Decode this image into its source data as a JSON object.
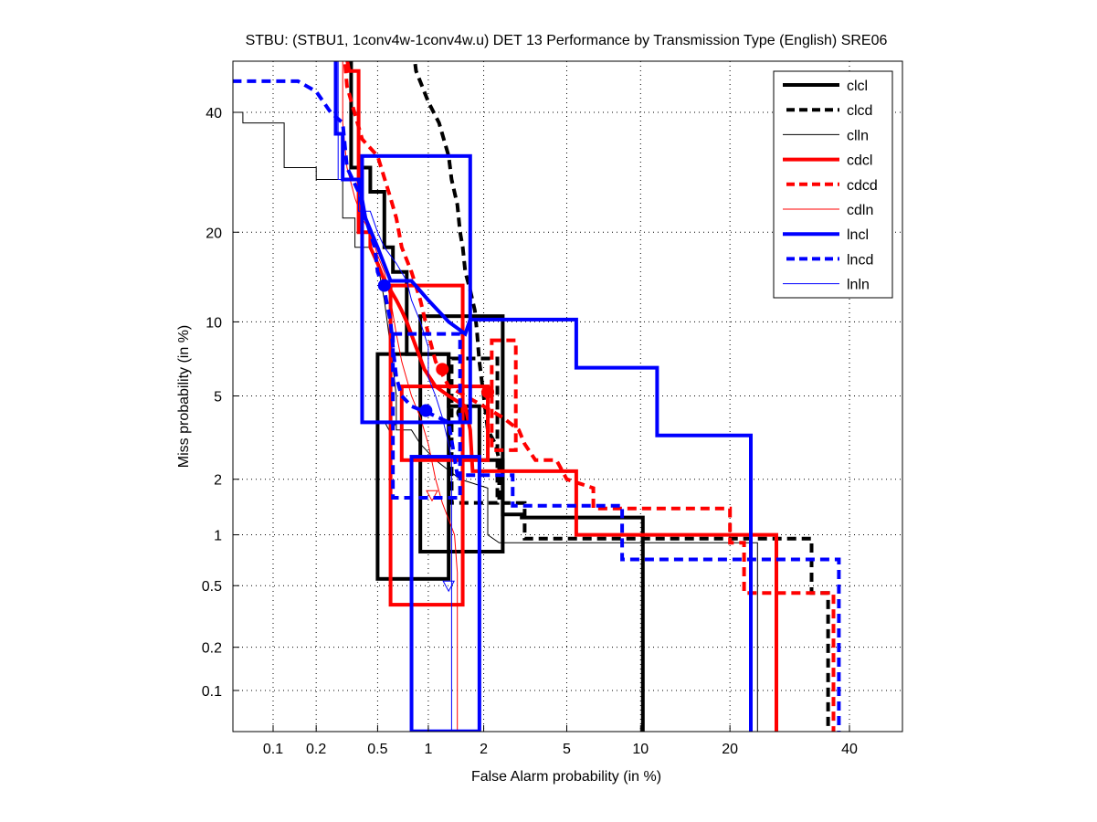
{
  "chart_data": {
    "type": "line",
    "title": "STBU: (STBU1, 1conv4w-1conv4w.u) DET 13 Performance by Transmission Type (English) SRE06",
    "xlabel": "False Alarm probability (in %)",
    "ylabel": "Miss probability (in %)",
    "xscale": "normal-deviate",
    "yscale": "normal-deviate",
    "xlim": [
      0.05,
      50
    ],
    "ylim": [
      0.05,
      50
    ],
    "xticks": [
      0.1,
      0.2,
      0.5,
      1,
      2,
      5,
      10,
      20,
      40
    ],
    "xtick_labels": [
      "0.1",
      "0.2",
      "0.5",
      "1",
      "2",
      "5",
      "10",
      "20",
      "40"
    ],
    "yticks": [
      0.1,
      0.2,
      0.5,
      1,
      2,
      5,
      10,
      20,
      40
    ],
    "ytick_labels": [
      "0.1",
      "0.2",
      "0.5",
      "1",
      "2",
      "5",
      "10",
      "20",
      "40"
    ],
    "grid": true,
    "legend_position": "top-right",
    "series": [
      {
        "name": "clcl",
        "color": "#000000",
        "style": "solid-thick",
        "points": [
          [
            0.34,
            55
          ],
          [
            0.34,
            30
          ],
          [
            0.45,
            30
          ],
          [
            0.45,
            26
          ],
          [
            0.55,
            26
          ],
          [
            0.55,
            18
          ],
          [
            0.62,
            18
          ],
          [
            0.62,
            15
          ],
          [
            0.75,
            15
          ],
          [
            0.75,
            7.5
          ],
          [
            1.3,
            7.5
          ],
          [
            1.3,
            4.5
          ],
          [
            1.9,
            4.5
          ],
          [
            1.9,
            2.5
          ],
          [
            2.5,
            2.5
          ],
          [
            2.5,
            1.3
          ],
          [
            3.1,
            1.3
          ],
          [
            3.1,
            1.25
          ],
          [
            10.2,
            1.25
          ],
          [
            10.2,
            0.05
          ]
        ],
        "box": [
          [
            0.5,
            0.55
          ],
          [
            1.3,
            7.5
          ]
        ],
        "box2": [
          [
            0.9,
            0.8
          ],
          [
            2.5,
            10.5
          ]
        ],
        "marker": [
          1.55,
          4.2
        ]
      },
      {
        "name": "clcd",
        "color": "#000000",
        "style": "dashed-thick",
        "points": [
          [
            0.8,
            55
          ],
          [
            0.85,
            48
          ],
          [
            1.0,
            42
          ],
          [
            1.15,
            38
          ],
          [
            1.3,
            32
          ],
          [
            1.35,
            28
          ],
          [
            1.45,
            24
          ],
          [
            1.5,
            20
          ],
          [
            1.55,
            18
          ],
          [
            1.6,
            15
          ],
          [
            1.7,
            13
          ],
          [
            1.8,
            11
          ],
          [
            1.85,
            9
          ],
          [
            1.9,
            7
          ],
          [
            2.0,
            5
          ],
          [
            2.1,
            3.5
          ],
          [
            2.3,
            3
          ],
          [
            2.4,
            2.5
          ],
          [
            2.4,
            1.5
          ],
          [
            3.2,
            1.5
          ],
          [
            3.2,
            0.95
          ],
          [
            33,
            0.95
          ],
          [
            33,
            0.45
          ],
          [
            36,
            0.45
          ],
          [
            36,
            0.05
          ]
        ],
        "box": [
          [
            1.35,
            1.5
          ],
          [
            2.35,
            7.2
          ]
        ],
        "marker": [
          1.6,
          4.0
        ]
      },
      {
        "name": "clln",
        "color": "#000000",
        "style": "solid-thin",
        "points": [
          [
            0.05,
            40
          ],
          [
            0.06,
            40
          ],
          [
            0.06,
            38
          ],
          [
            0.12,
            38
          ],
          [
            0.12,
            30
          ],
          [
            0.2,
            30
          ],
          [
            0.2,
            28
          ],
          [
            0.3,
            28
          ],
          [
            0.3,
            22
          ],
          [
            0.36,
            22
          ],
          [
            0.36,
            18
          ],
          [
            0.45,
            18
          ],
          [
            0.5,
            16
          ],
          [
            0.55,
            12
          ],
          [
            0.6,
            8
          ],
          [
            0.65,
            5
          ],
          [
            0.65,
            3.5
          ],
          [
            0.8,
            3.5
          ],
          [
            0.9,
            3
          ],
          [
            1.1,
            2.5
          ],
          [
            1.5,
            2
          ],
          [
            2.1,
            1.8
          ],
          [
            2.1,
            1.0
          ],
          [
            2.4,
            0.9
          ],
          [
            24,
            0.9
          ],
          [
            24,
            0.05
          ]
        ],
        "marker": [
          0.6,
          3.6
        ]
      },
      {
        "name": "cdcl",
        "color": "#ff0000",
        "style": "solid-thick",
        "points": [
          [
            0.3,
            55
          ],
          [
            0.33,
            48
          ],
          [
            0.38,
            48
          ],
          [
            0.38,
            20
          ],
          [
            0.45,
            20
          ],
          [
            0.45,
            18
          ],
          [
            0.5,
            16
          ],
          [
            0.55,
            14
          ],
          [
            0.6,
            13
          ],
          [
            0.65,
            12
          ],
          [
            0.7,
            11
          ],
          [
            0.75,
            10
          ],
          [
            0.85,
            8
          ],
          [
            0.95,
            6.5
          ],
          [
            1.1,
            5.5
          ],
          [
            1.3,
            5
          ],
          [
            1.6,
            4.5
          ],
          [
            1.7,
            3.5
          ],
          [
            1.75,
            2.2
          ],
          [
            5.5,
            2.2
          ],
          [
            5.5,
            1.0
          ],
          [
            27,
            1.0
          ],
          [
            27,
            0.05
          ]
        ],
        "box": [
          [
            0.6,
            0.38
          ],
          [
            1.55,
            13.5
          ]
        ],
        "box2": [
          [
            0.7,
            2.5
          ],
          [
            2.1,
            5.5
          ]
        ],
        "marker": [
          1.2,
          6.5
        ]
      },
      {
        "name": "cdcd",
        "color": "#ff0000",
        "style": "dashed-thick",
        "points": [
          [
            0.3,
            55
          ],
          [
            0.32,
            45
          ],
          [
            0.4,
            35
          ],
          [
            0.5,
            32
          ],
          [
            0.6,
            25
          ],
          [
            0.65,
            22
          ],
          [
            0.7,
            18
          ],
          [
            0.8,
            15
          ],
          [
            0.9,
            12
          ],
          [
            1.0,
            9
          ],
          [
            1.1,
            7
          ],
          [
            1.3,
            5.5
          ],
          [
            1.6,
            5
          ],
          [
            2.0,
            4.5
          ],
          [
            2.5,
            4
          ],
          [
            3.0,
            3.5
          ],
          [
            3.2,
            3
          ],
          [
            3.6,
            2.5
          ],
          [
            4.5,
            2.5
          ],
          [
            5.0,
            2
          ],
          [
            6.5,
            1.8
          ],
          [
            6.5,
            1.4
          ],
          [
            20,
            1.4
          ],
          [
            20,
            0.9
          ],
          [
            22,
            0.9
          ],
          [
            22,
            0.45
          ],
          [
            37,
            0.45
          ],
          [
            37,
            0.05
          ]
        ],
        "box": [
          [
            2.2,
            2.8
          ],
          [
            2.9,
            8.5
          ]
        ],
        "marker": [
          2.1,
          5.2
        ]
      },
      {
        "name": "cdln",
        "color": "#ff0000",
        "style": "solid-thin",
        "points": [
          [
            0.3,
            55
          ],
          [
            0.3,
            38
          ],
          [
            0.32,
            30
          ],
          [
            0.36,
            25
          ],
          [
            0.4,
            22
          ],
          [
            0.45,
            20
          ],
          [
            0.5,
            17
          ],
          [
            0.55,
            15
          ],
          [
            0.6,
            12
          ],
          [
            0.65,
            9
          ],
          [
            0.7,
            7
          ],
          [
            0.8,
            5
          ],
          [
            0.9,
            4
          ],
          [
            1.0,
            3
          ],
          [
            1.1,
            2.0
          ],
          [
            1.2,
            1.5
          ],
          [
            1.4,
            1.0
          ],
          [
            1.45,
            0.6
          ],
          [
            1.45,
            0.05
          ]
        ],
        "marker": [
          1.05,
          1.65
        ]
      },
      {
        "name": "lncl",
        "color": "#0000ff",
        "style": "solid-thick",
        "points": [
          [
            0.27,
            55
          ],
          [
            0.27,
            36
          ],
          [
            0.3,
            36
          ],
          [
            0.3,
            28
          ],
          [
            0.38,
            28
          ],
          [
            0.42,
            22
          ],
          [
            0.5,
            18
          ],
          [
            0.6,
            14
          ],
          [
            0.8,
            14
          ],
          [
            1.0,
            12
          ],
          [
            1.3,
            10
          ],
          [
            1.6,
            9
          ],
          [
            1.7,
            10.2
          ],
          [
            5.5,
            10.2
          ],
          [
            5.5,
            6.6
          ],
          [
            11.5,
            6.6
          ],
          [
            11.5,
            3.3
          ],
          [
            23,
            3.3
          ],
          [
            23,
            0.05
          ]
        ],
        "box": [
          [
            0.4,
            3.8
          ],
          [
            1.7,
            32
          ]
        ],
        "box2": [
          [
            0.8,
            0.05
          ],
          [
            1.9,
            2.6
          ]
        ],
        "marker": [
          0.55,
          13.5
        ]
      },
      {
        "name": "lncd",
        "color": "#0000ff",
        "style": "dashed-thick",
        "points": [
          [
            0.05,
            46
          ],
          [
            0.15,
            46
          ],
          [
            0.2,
            44
          ],
          [
            0.25,
            40
          ],
          [
            0.3,
            38
          ],
          [
            0.32,
            30
          ],
          [
            0.38,
            26
          ],
          [
            0.42,
            22
          ],
          [
            0.48,
            18
          ],
          [
            0.5,
            15
          ],
          [
            0.55,
            13
          ],
          [
            0.6,
            10
          ],
          [
            0.62,
            8
          ],
          [
            0.65,
            6
          ],
          [
            0.7,
            5
          ],
          [
            0.8,
            4.5
          ],
          [
            1.0,
            4.2
          ],
          [
            1.3,
            3.8
          ],
          [
            1.45,
            2.1
          ],
          [
            2.8,
            2.1
          ],
          [
            2.8,
            1.45
          ],
          [
            8.5,
            1.45
          ],
          [
            8.5,
            0.72
          ],
          [
            38,
            0.72
          ],
          [
            38,
            0.05
          ]
        ],
        "box": [
          [
            0.62,
            1.6
          ],
          [
            1.5,
            9
          ]
        ],
        "marker": [
          0.97,
          4.3
        ]
      },
      {
        "name": "lnln",
        "color": "#0000ff",
        "style": "solid-thin",
        "points": [
          [
            0.28,
            55
          ],
          [
            0.28,
            28
          ],
          [
            0.38,
            28
          ],
          [
            0.38,
            23
          ],
          [
            0.45,
            23
          ],
          [
            0.5,
            20
          ],
          [
            0.55,
            18
          ],
          [
            0.65,
            16
          ],
          [
            0.75,
            14
          ],
          [
            0.8,
            12
          ],
          [
            0.9,
            10
          ],
          [
            1.0,
            8
          ],
          [
            1.0,
            6
          ],
          [
            1.1,
            5
          ],
          [
            1.2,
            4
          ],
          [
            1.3,
            3
          ],
          [
            1.35,
            2.5
          ],
          [
            1.35,
            0.5
          ],
          [
            1.35,
            0.05
          ]
        ],
        "marker": [
          1.3,
          0.5
        ]
      }
    ]
  }
}
